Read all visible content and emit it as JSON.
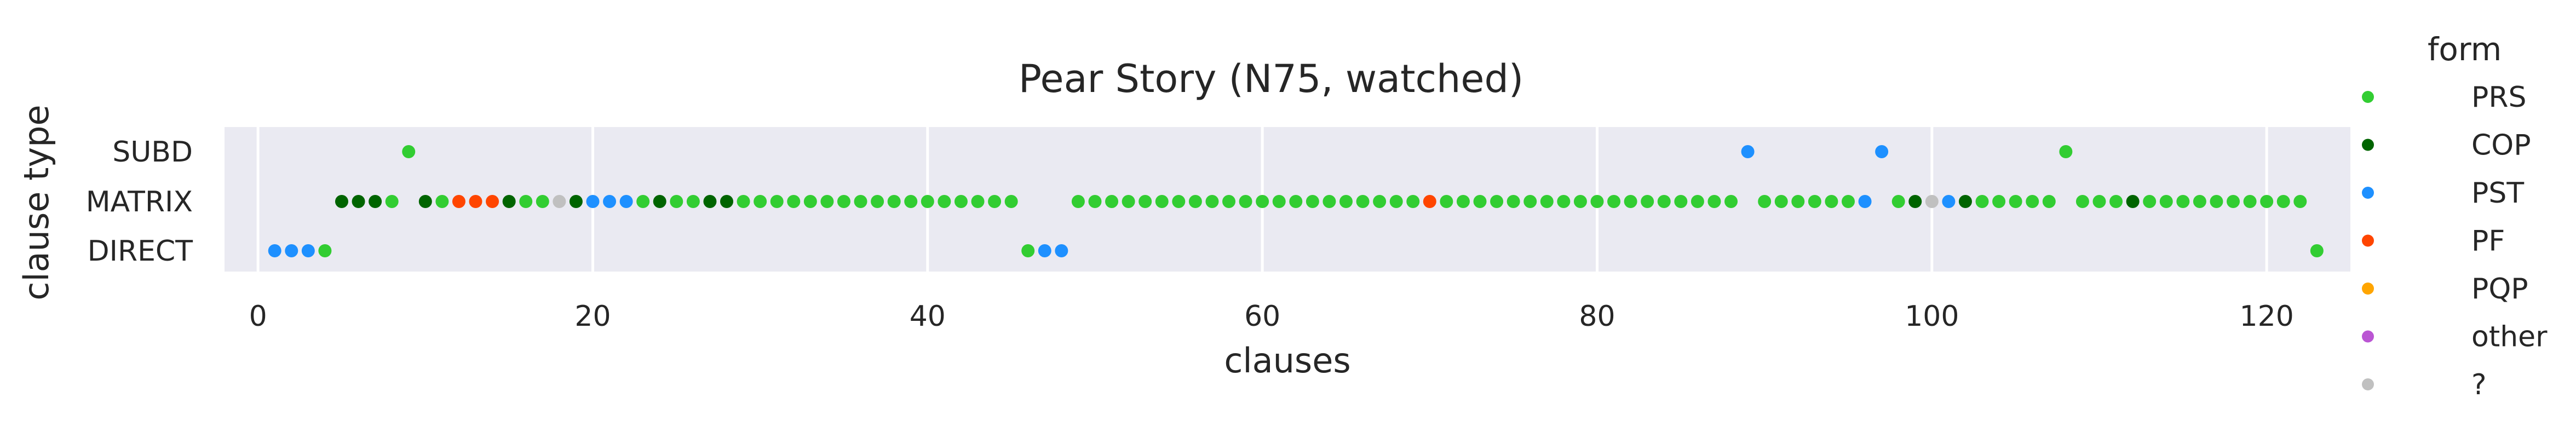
{
  "chart_data": {
    "type": "scatter",
    "title": "Pear Story (N75, watched)",
    "xlabel": "clauses",
    "ylabel": "clause type",
    "xlim": [
      -2,
      125
    ],
    "x_ticks": [
      0,
      20,
      40,
      60,
      80,
      100,
      120
    ],
    "y_categories": [
      "SUBD",
      "MATRIX",
      "DIRECT"
    ],
    "grid": true,
    "legend": {
      "title": "form",
      "placement": "right",
      "entries": [
        {
          "label": "PRS",
          "color": "#32cd32"
        },
        {
          "label": "COP",
          "color": "#006400"
        },
        {
          "label": "PST",
          "color": "#1e90ff"
        },
        {
          "label": "PF",
          "color": "#ff4500"
        },
        {
          "label": "PQP",
          "color": "#ffa500"
        },
        {
          "label": "other",
          "color": "#ba55d3"
        },
        {
          "label": "?",
          "color": "#c0c0c0"
        }
      ]
    },
    "points": [
      {
        "x": 1,
        "type": "DIRECT",
        "form": "PST"
      },
      {
        "x": 2,
        "type": "DIRECT",
        "form": "PST"
      },
      {
        "x": 3,
        "type": "DIRECT",
        "form": "PST"
      },
      {
        "x": 4,
        "type": "DIRECT",
        "form": "PRS"
      },
      {
        "x": 5,
        "type": "MATRIX",
        "form": "COP"
      },
      {
        "x": 6,
        "type": "MATRIX",
        "form": "COP"
      },
      {
        "x": 7,
        "type": "MATRIX",
        "form": "COP"
      },
      {
        "x": 8,
        "type": "MATRIX",
        "form": "PRS"
      },
      {
        "x": 9,
        "type": "SUBD",
        "form": "PRS"
      },
      {
        "x": 10,
        "type": "MATRIX",
        "form": "COP"
      },
      {
        "x": 11,
        "type": "MATRIX",
        "form": "PRS"
      },
      {
        "x": 12,
        "type": "MATRIX",
        "form": "PF"
      },
      {
        "x": 13,
        "type": "MATRIX",
        "form": "PF"
      },
      {
        "x": 14,
        "type": "MATRIX",
        "form": "PF"
      },
      {
        "x": 15,
        "type": "MATRIX",
        "form": "COP"
      },
      {
        "x": 16,
        "type": "MATRIX",
        "form": "PRS"
      },
      {
        "x": 17,
        "type": "MATRIX",
        "form": "PRS"
      },
      {
        "x": 18,
        "type": "MATRIX",
        "form": "?"
      },
      {
        "x": 19,
        "type": "MATRIX",
        "form": "COP"
      },
      {
        "x": 20,
        "type": "MATRIX",
        "form": "PST"
      },
      {
        "x": 21,
        "type": "MATRIX",
        "form": "PST"
      },
      {
        "x": 22,
        "type": "MATRIX",
        "form": "PST"
      },
      {
        "x": 23,
        "type": "MATRIX",
        "form": "PRS"
      },
      {
        "x": 24,
        "type": "MATRIX",
        "form": "COP"
      },
      {
        "x": 25,
        "type": "MATRIX",
        "form": "PRS"
      },
      {
        "x": 26,
        "type": "MATRIX",
        "form": "PRS"
      },
      {
        "x": 27,
        "type": "MATRIX",
        "form": "COP"
      },
      {
        "x": 28,
        "type": "MATRIX",
        "form": "COP"
      },
      {
        "x": 29,
        "type": "MATRIX",
        "form": "PRS"
      },
      {
        "x": 30,
        "type": "MATRIX",
        "form": "PRS"
      },
      {
        "x": 31,
        "type": "MATRIX",
        "form": "PRS"
      },
      {
        "x": 32,
        "type": "MATRIX",
        "form": "PRS"
      },
      {
        "x": 33,
        "type": "MATRIX",
        "form": "PRS"
      },
      {
        "x": 34,
        "type": "MATRIX",
        "form": "PRS"
      },
      {
        "x": 35,
        "type": "MATRIX",
        "form": "PRS"
      },
      {
        "x": 36,
        "type": "MATRIX",
        "form": "PRS"
      },
      {
        "x": 37,
        "type": "MATRIX",
        "form": "PRS"
      },
      {
        "x": 38,
        "type": "MATRIX",
        "form": "PRS"
      },
      {
        "x": 39,
        "type": "MATRIX",
        "form": "PRS"
      },
      {
        "x": 40,
        "type": "MATRIX",
        "form": "PRS"
      },
      {
        "x": 41,
        "type": "MATRIX",
        "form": "PRS"
      },
      {
        "x": 42,
        "type": "MATRIX",
        "form": "PRS"
      },
      {
        "x": 43,
        "type": "MATRIX",
        "form": "PRS"
      },
      {
        "x": 44,
        "type": "MATRIX",
        "form": "PRS"
      },
      {
        "x": 45,
        "type": "MATRIX",
        "form": "PRS"
      },
      {
        "x": 46,
        "type": "DIRECT",
        "form": "PRS"
      },
      {
        "x": 47,
        "type": "DIRECT",
        "form": "PST"
      },
      {
        "x": 48,
        "type": "DIRECT",
        "form": "PST"
      },
      {
        "x": 49,
        "type": "MATRIX",
        "form": "PRS"
      },
      {
        "x": 50,
        "type": "MATRIX",
        "form": "PRS"
      },
      {
        "x": 51,
        "type": "MATRIX",
        "form": "PRS"
      },
      {
        "x": 52,
        "type": "MATRIX",
        "form": "PRS"
      },
      {
        "x": 53,
        "type": "MATRIX",
        "form": "PRS"
      },
      {
        "x": 54,
        "type": "MATRIX",
        "form": "PRS"
      },
      {
        "x": 55,
        "type": "MATRIX",
        "form": "PRS"
      },
      {
        "x": 56,
        "type": "MATRIX",
        "form": "PRS"
      },
      {
        "x": 57,
        "type": "MATRIX",
        "form": "PRS"
      },
      {
        "x": 58,
        "type": "MATRIX",
        "form": "PRS"
      },
      {
        "x": 59,
        "type": "MATRIX",
        "form": "PRS"
      },
      {
        "x": 60,
        "type": "MATRIX",
        "form": "PRS"
      },
      {
        "x": 61,
        "type": "MATRIX",
        "form": "PRS"
      },
      {
        "x": 62,
        "type": "MATRIX",
        "form": "PRS"
      },
      {
        "x": 63,
        "type": "MATRIX",
        "form": "PRS"
      },
      {
        "x": 64,
        "type": "MATRIX",
        "form": "PRS"
      },
      {
        "x": 65,
        "type": "MATRIX",
        "form": "PRS"
      },
      {
        "x": 66,
        "type": "MATRIX",
        "form": "PRS"
      },
      {
        "x": 67,
        "type": "MATRIX",
        "form": "PRS"
      },
      {
        "x": 68,
        "type": "MATRIX",
        "form": "PRS"
      },
      {
        "x": 69,
        "type": "MATRIX",
        "form": "PRS"
      },
      {
        "x": 70,
        "type": "MATRIX",
        "form": "PF"
      },
      {
        "x": 71,
        "type": "MATRIX",
        "form": "PRS"
      },
      {
        "x": 72,
        "type": "MATRIX",
        "form": "PRS"
      },
      {
        "x": 73,
        "type": "MATRIX",
        "form": "PRS"
      },
      {
        "x": 74,
        "type": "MATRIX",
        "form": "PRS"
      },
      {
        "x": 75,
        "type": "MATRIX",
        "form": "PRS"
      },
      {
        "x": 76,
        "type": "MATRIX",
        "form": "PRS"
      },
      {
        "x": 77,
        "type": "MATRIX",
        "form": "PRS"
      },
      {
        "x": 78,
        "type": "MATRIX",
        "form": "PRS"
      },
      {
        "x": 79,
        "type": "MATRIX",
        "form": "PRS"
      },
      {
        "x": 80,
        "type": "MATRIX",
        "form": "PRS"
      },
      {
        "x": 81,
        "type": "MATRIX",
        "form": "PRS"
      },
      {
        "x": 82,
        "type": "MATRIX",
        "form": "PRS"
      },
      {
        "x": 83,
        "type": "MATRIX",
        "form": "PRS"
      },
      {
        "x": 84,
        "type": "MATRIX",
        "form": "PRS"
      },
      {
        "x": 85,
        "type": "MATRIX",
        "form": "PRS"
      },
      {
        "x": 86,
        "type": "MATRIX",
        "form": "PRS"
      },
      {
        "x": 87,
        "type": "MATRIX",
        "form": "PRS"
      },
      {
        "x": 88,
        "type": "MATRIX",
        "form": "PRS"
      },
      {
        "x": 89,
        "type": "SUBD",
        "form": "PST"
      },
      {
        "x": 90,
        "type": "MATRIX",
        "form": "PRS"
      },
      {
        "x": 91,
        "type": "MATRIX",
        "form": "PRS"
      },
      {
        "x": 92,
        "type": "MATRIX",
        "form": "PRS"
      },
      {
        "x": 93,
        "type": "MATRIX",
        "form": "PRS"
      },
      {
        "x": 94,
        "type": "MATRIX",
        "form": "PRS"
      },
      {
        "x": 95,
        "type": "MATRIX",
        "form": "PRS"
      },
      {
        "x": 96,
        "type": "MATRIX",
        "form": "PST"
      },
      {
        "x": 97,
        "type": "SUBD",
        "form": "PST"
      },
      {
        "x": 98,
        "type": "MATRIX",
        "form": "PRS"
      },
      {
        "x": 99,
        "type": "MATRIX",
        "form": "COP"
      },
      {
        "x": 100,
        "type": "MATRIX",
        "form": "?"
      },
      {
        "x": 101,
        "type": "MATRIX",
        "form": "PST"
      },
      {
        "x": 102,
        "type": "MATRIX",
        "form": "COP"
      },
      {
        "x": 103,
        "type": "MATRIX",
        "form": "PRS"
      },
      {
        "x": 104,
        "type": "MATRIX",
        "form": "PRS"
      },
      {
        "x": 105,
        "type": "MATRIX",
        "form": "PRS"
      },
      {
        "x": 106,
        "type": "MATRIX",
        "form": "PRS"
      },
      {
        "x": 107,
        "type": "MATRIX",
        "form": "PRS"
      },
      {
        "x": 108,
        "type": "SUBD",
        "form": "PRS"
      },
      {
        "x": 109,
        "type": "MATRIX",
        "form": "PRS"
      },
      {
        "x": 110,
        "type": "MATRIX",
        "form": "PRS"
      },
      {
        "x": 111,
        "type": "MATRIX",
        "form": "PRS"
      },
      {
        "x": 112,
        "type": "MATRIX",
        "form": "COP"
      },
      {
        "x": 113,
        "type": "MATRIX",
        "form": "PRS"
      },
      {
        "x": 114,
        "type": "MATRIX",
        "form": "PRS"
      },
      {
        "x": 115,
        "type": "MATRIX",
        "form": "PRS"
      },
      {
        "x": 116,
        "type": "MATRIX",
        "form": "PRS"
      },
      {
        "x": 117,
        "type": "MATRIX",
        "form": "PRS"
      },
      {
        "x": 118,
        "type": "MATRIX",
        "form": "PRS"
      },
      {
        "x": 119,
        "type": "MATRIX",
        "form": "PRS"
      },
      {
        "x": 120,
        "type": "MATRIX",
        "form": "PRS"
      },
      {
        "x": 121,
        "type": "MATRIX",
        "form": "PRS"
      },
      {
        "x": 122,
        "type": "MATRIX",
        "form": "PRS"
      },
      {
        "x": 123,
        "type": "DIRECT",
        "form": "PRS"
      }
    ]
  }
}
